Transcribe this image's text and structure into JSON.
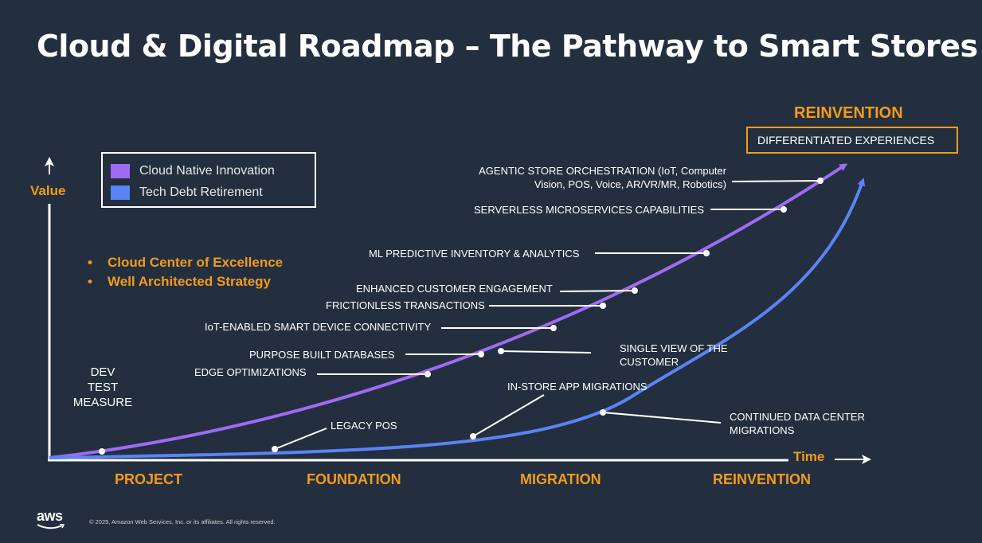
{
  "title": "Cloud & Digital Roadmap – The Pathway to Smart Stores",
  "axes": {
    "y_label": "Value",
    "x_label": "Time"
  },
  "legend": [
    {
      "name": "Cloud Native Innovation",
      "color": "#9f6bf5"
    },
    {
      "name": "Tech Debt Retirement",
      "color": "#5a84f5"
    }
  ],
  "bullets": [
    "Cloud Center of Excellence",
    "Well Architected Strategy"
  ],
  "reinvention_heading": "REINVENTION",
  "outcome_box": "DIFFERENTIATED EXPERIENCES",
  "phases": [
    "PROJECT",
    "FOUNDATION",
    "MIGRATION",
    "REINVENTION"
  ],
  "dev_test_measure": [
    "DEV",
    "TEST",
    "MEASURE"
  ],
  "innovation_milestones": [
    "AGENTIC STORE ORCHESTRATION (IoT, Computer",
    "Vision, POS, Voice, AR/VR/MR, Robotics)",
    "SERVERLESS MICROSERVICES CAPABILITIES",
    "ML PREDICTIVE INVENTORY & ANALYTICS",
    "ENHANCED CUSTOMER ENGAGEMENT",
    "FRICTIONLESS TRANSACTIONS",
    "IoT-ENABLED SMART DEVICE CONNECTIVITY",
    "PURPOSE BUILT DATABASES",
    "EDGE OPTIMIZATIONS"
  ],
  "retirement_milestones": [
    "SINGLE VIEW OF THE",
    "CUSTOMER",
    "IN-STORE APP MIGRATIONS",
    "LEGACY POS",
    "CONTINUED DATA CENTER",
    "MIGRATIONS"
  ],
  "colors": {
    "background": "#232f3e",
    "accent": "#f29b1b",
    "innovation": "#9f6bf5",
    "retirement": "#5a84f5"
  },
  "footer": {
    "logo": "aws",
    "copyright": "© 2025, Amazon Web Services, Inc. or its affiliates. All rights reserved."
  }
}
